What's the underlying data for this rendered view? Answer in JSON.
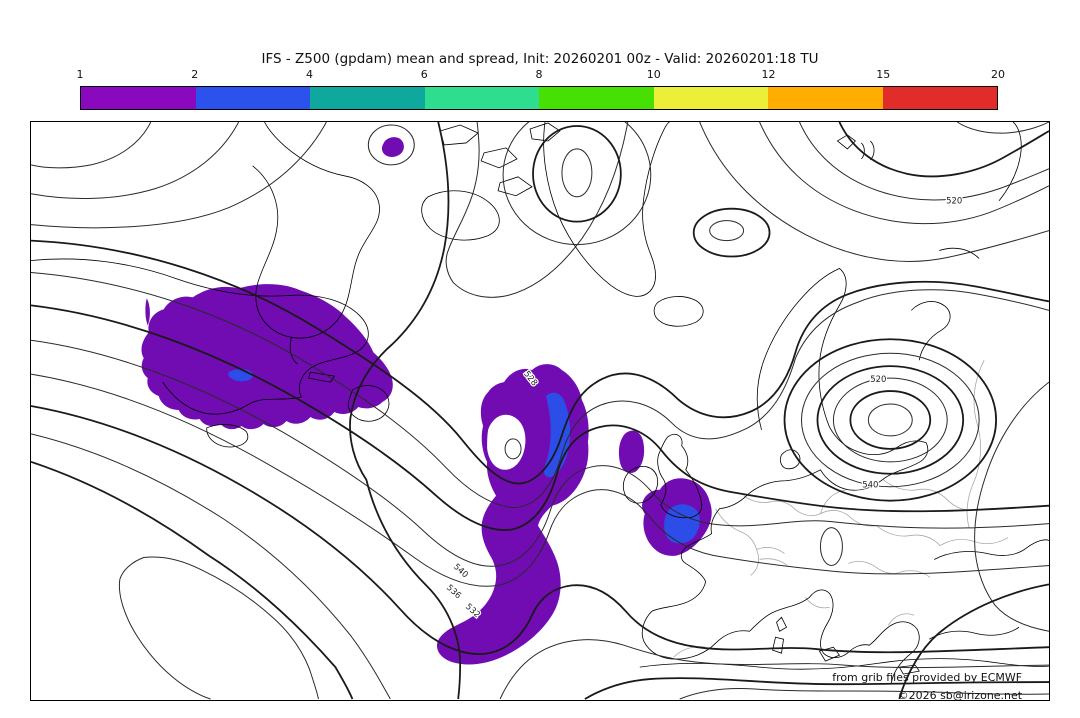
{
  "title": "IFS - Z500 (gpdam) mean and spread, Init: 20260201 00z - Valid: 20260201:18 TU",
  "colorbar": {
    "ticks": [
      "1",
      "2",
      "4",
      "6",
      "8",
      "10",
      "12",
      "15",
      "20"
    ],
    "segments": [
      {
        "from": "1",
        "to": "2",
        "color": "#8a08be"
      },
      {
        "from": "2",
        "to": "4",
        "color": "#2b52ed"
      },
      {
        "from": "4",
        "to": "6",
        "color": "#0fa89d"
      },
      {
        "from": "6",
        "to": "8",
        "color": "#2edd8d"
      },
      {
        "from": "8",
        "to": "10",
        "color": "#47e005"
      },
      {
        "from": "10",
        "to": "12",
        "color": "#ebef38"
      },
      {
        "from": "12",
        "to": "15",
        "color": "#ffad00"
      },
      {
        "from": "15",
        "to": "20",
        "color": "#e22c29"
      }
    ]
  },
  "map": {
    "colors": {
      "spread_1_2": "#700cb2",
      "spread_2_4": "#2d4de9"
    },
    "contour_labels": [
      {
        "text": "520"
      },
      {
        "text": "520"
      },
      {
        "text": "540"
      },
      {
        "text": "528"
      },
      {
        "text": "540"
      },
      {
        "text": "536"
      },
      {
        "text": "532"
      }
    ],
    "credits": {
      "line1": "from grib files provided by ECMWF",
      "line2": "©2026 sb@irizone.net"
    }
  },
  "chart_data": {
    "type": "contour-map",
    "title": "IFS - Z500 (gpdam) mean and spread",
    "init": "20260201 00z",
    "valid": "20260201:18 TU",
    "field": "500 hPa geopotential height ensemble mean (black contours, gpdam) with ensemble spread shading (gpdam)",
    "legend_levels": [
      1,
      2,
      4,
      6,
      8,
      10,
      12,
      15,
      20
    ],
    "contour_labels_visible_gpdam": [
      520,
      528,
      532,
      536,
      540
    ],
    "shaded_spread_regions": [
      {
        "level": "1-2",
        "location": "eastern Canada / Quebec-Labrador"
      },
      {
        "level": "1-2",
        "location": "central North Atlantic trough and comma-shaped band to its south"
      },
      {
        "level": "1-2",
        "location": "Ireland / southern England / Channel area plus small patch NW of Scotland"
      },
      {
        "level": "1-2",
        "location": "small spot in Canadian Arctic"
      },
      {
        "level": "2-4",
        "location": "cores embedded in mid-Atlantic blob, Channel blob and small spot in Canada blob"
      }
    ],
    "attribution": [
      "from grib files provided by ECMWF",
      "©2026 sb@irizone.net"
    ]
  }
}
